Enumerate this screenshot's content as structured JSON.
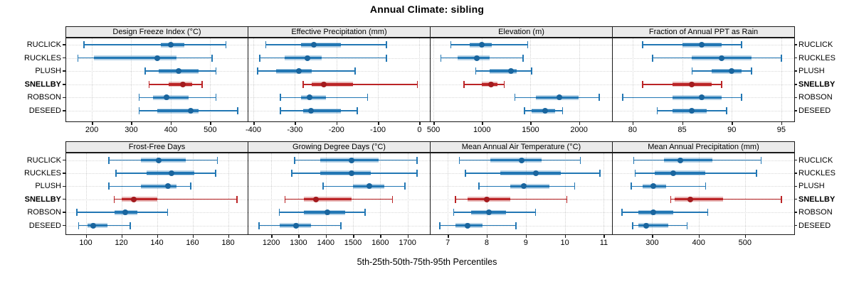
{
  "title": "Annual Climate: sibling",
  "caption": "5th-25th-50th-75th-95th Percentiles",
  "sites": [
    "RUCLICK",
    "RUCKLES",
    "PLUSH",
    "SNELLBY",
    "ROBSON",
    "DESEED"
  ],
  "highlight_site": "SNELLBY",
  "colors": {
    "series": "#2277b4",
    "series_dot": "#19659e",
    "highlight": "#bb2426",
    "highlight_dot": "#a31b1e",
    "strip_bg": "#ebebeb",
    "grid": "#d2d2d2",
    "border": "#1a1a1a"
  },
  "chart_data": {
    "type": "interval-dotplot",
    "percentiles": [
      5,
      25,
      50,
      75,
      95
    ],
    "legend_position": "none",
    "grid": "dotted",
    "panels": [
      {
        "title": "Design Freeze Index (°C)",
        "row": 0,
        "col": 0,
        "xlim": [
          135,
          595
        ],
        "ticks": [
          200,
          300,
          400,
          500
        ],
        "series": [
          {
            "site": "RUCLICK",
            "values": [
              180,
              375,
              400,
              435,
              540
            ]
          },
          {
            "site": "RUCKLES",
            "values": [
              165,
              205,
              365,
              415,
              505
            ]
          },
          {
            "site": "PLUSH",
            "values": [
              335,
              370,
              420,
              470,
              515
            ]
          },
          {
            "site": "SNELLBY",
            "values": [
              345,
              395,
              430,
              455,
              480
            ]
          },
          {
            "site": "ROBSON",
            "values": [
              320,
              355,
              390,
              445,
              515
            ]
          },
          {
            "site": "DESEED",
            "values": [
              320,
              365,
              450,
              470,
              570
            ]
          }
        ]
      },
      {
        "title": "Effective Precipitation (mm)",
        "row": 0,
        "col": 1,
        "xlim": [
          -412,
          25
        ],
        "ticks": [
          -400,
          -300,
          -200,
          -100,
          0
        ],
        "series": [
          {
            "site": "RUCLICK",
            "values": [
              -370,
              -285,
              -255,
              -190,
              -80
            ]
          },
          {
            "site": "RUCKLES",
            "values": [
              -385,
              -325,
              -270,
              -235,
              -80
            ]
          },
          {
            "site": "PLUSH",
            "values": [
              -390,
              -345,
              -290,
              -260,
              -155
            ]
          },
          {
            "site": "SNELLBY",
            "values": [
              -280,
              -260,
              -230,
              -160,
              -5
            ]
          },
          {
            "site": "ROBSON",
            "values": [
              -335,
              -285,
              -265,
              -225,
              -125
            ]
          },
          {
            "site": "DESEED",
            "values": [
              -335,
              -280,
              -262,
              -190,
              -150
            ]
          }
        ]
      },
      {
        "title": "Elevation (m)",
        "row": 0,
        "col": 2,
        "xlim": [
          470,
          2340
        ],
        "ticks": [
          500,
          1000,
          1500,
          2000
        ],
        "series": [
          {
            "site": "RUCLICK",
            "values": [
              680,
              870,
              1000,
              1100,
              1470
            ]
          },
          {
            "site": "RUCKLES",
            "values": [
              575,
              745,
              950,
              1080,
              1425
            ]
          },
          {
            "site": "PLUSH",
            "values": [
              935,
              1075,
              1300,
              1355,
              1510
            ]
          },
          {
            "site": "SNELLBY",
            "values": [
              815,
              1000,
              1095,
              1160,
              1230
            ]
          },
          {
            "site": "ROBSON",
            "values": [
              1340,
              1555,
              1795,
              1995,
              2210
            ]
          },
          {
            "site": "DESEED",
            "values": [
              1440,
              1510,
              1650,
              1755,
              1830
            ]
          }
        ]
      },
      {
        "title": "Fraction of Annual PPT as Rain",
        "row": 0,
        "col": 3,
        "xlim": [
          78,
          96.3
        ],
        "ticks": [
          80,
          85,
          90,
          95
        ],
        "series": [
          {
            "site": "RUCLICK",
            "values": [
              81,
              85,
              87,
              89,
              91
            ]
          },
          {
            "site": "RUCKLES",
            "values": [
              82,
              86,
              89,
              92,
              95
            ]
          },
          {
            "site": "PLUSH",
            "values": [
              86,
              88,
              90,
              91,
              92
            ]
          },
          {
            "site": "SNELLBY",
            "values": [
              81,
              84,
              86,
              88,
              89
            ]
          },
          {
            "site": "ROBSON",
            "values": [
              79,
              84,
              87,
              89,
              91
            ]
          },
          {
            "site": "DESEED",
            "values": [
              82.5,
              84,
              86,
              87.5,
              89.5
            ]
          }
        ]
      },
      {
        "title": "Frost-Free Days",
        "row": 1,
        "col": 0,
        "xlim": [
          89,
          191
        ],
        "ticks": [
          100,
          120,
          140,
          160,
          180
        ],
        "series": [
          {
            "site": "RUCLICK",
            "values": [
              113,
              131,
              141,
              156,
              174
            ]
          },
          {
            "site": "RUCKLES",
            "values": [
              117,
              134,
              148,
              161,
              173
            ]
          },
          {
            "site": "PLUSH",
            "values": [
              113,
              131,
              146,
              151,
              159
            ]
          },
          {
            "site": "SNELLBY",
            "values": [
              116,
              120,
              127,
              140,
              185
            ]
          },
          {
            "site": "ROBSON",
            "values": [
              95,
              116,
              122,
              129,
              146
            ]
          },
          {
            "site": "DESEED",
            "values": [
              96,
              101,
              104,
              112,
              125
            ]
          }
        ]
      },
      {
        "title": "Growing Degree Days (°C)",
        "row": 1,
        "col": 1,
        "xlim": [
          1116,
          1782
        ],
        "ticks": [
          1200,
          1300,
          1400,
          1500,
          1600,
          1700
        ],
        "series": [
          {
            "site": "RUCLICK",
            "values": [
              1285,
              1380,
              1495,
              1595,
              1735
            ]
          },
          {
            "site": "RUCKLES",
            "values": [
              1275,
              1380,
              1495,
              1565,
              1735
            ]
          },
          {
            "site": "PLUSH",
            "values": [
              1390,
              1500,
              1560,
              1615,
              1690
            ]
          },
          {
            "site": "SNELLBY",
            "values": [
              1250,
              1320,
              1365,
              1495,
              1645
            ]
          },
          {
            "site": "ROBSON",
            "values": [
              1230,
              1320,
              1405,
              1470,
              1545
            ]
          },
          {
            "site": "DESEED",
            "values": [
              1155,
              1230,
              1290,
              1345,
              1455
            ]
          }
        ]
      },
      {
        "title": "Mean Annual Air Temperature (°C)",
        "row": 1,
        "col": 2,
        "xlim": [
          6.56,
          11.21
        ],
        "ticks": [
          7,
          8,
          9,
          10,
          11
        ],
        "series": [
          {
            "site": "RUCLICK",
            "values": [
              7.3,
              8.1,
              8.9,
              9.4,
              10.4
            ]
          },
          {
            "site": "RUCKLES",
            "values": [
              7.45,
              8.35,
              9.25,
              9.9,
              10.9
            ]
          },
          {
            "site": "PLUSH",
            "values": [
              7.8,
              8.6,
              8.95,
              9.6,
              10.25
            ]
          },
          {
            "site": "SNELLBY",
            "values": [
              7.2,
              7.5,
              8.0,
              8.6,
              10.05
            ]
          },
          {
            "site": "ROBSON",
            "values": [
              7.15,
              7.6,
              8.05,
              8.5,
              9.25
            ]
          },
          {
            "site": "DESEED",
            "values": [
              6.8,
              7.2,
              7.5,
              7.9,
              8.75
            ]
          }
        ]
      },
      {
        "title": "Mean Annual Precipitation (mm)",
        "row": 1,
        "col": 3,
        "xlim": [
          215,
          606
        ],
        "ticks": [
          300,
          400,
          500
        ],
        "series": [
          {
            "site": "RUCLICK",
            "values": [
              260,
              325,
              360,
              430,
              535
            ]
          },
          {
            "site": "RUCKLES",
            "values": [
              263,
              305,
              345,
              415,
              525
            ]
          },
          {
            "site": "PLUSH",
            "values": [
              255,
              280,
              303,
              330,
              415
            ]
          },
          {
            "site": "SNELLBY",
            "values": [
              340,
              348,
              382,
              452,
              578
            ]
          },
          {
            "site": "ROBSON",
            "values": [
              235,
              270,
              303,
              345,
              420
            ]
          },
          {
            "site": "DESEED",
            "values": [
              258,
              270,
              287,
              335,
              375
            ]
          }
        ]
      }
    ]
  }
}
